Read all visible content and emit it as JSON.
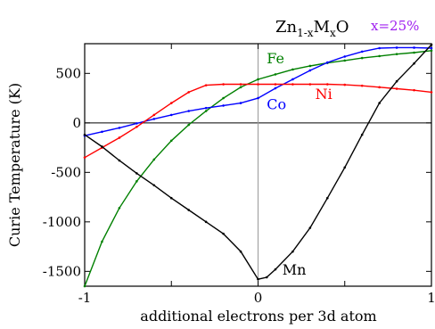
{
  "chart_data": {
    "type": "line",
    "title_parts": {
      "base": "Zn",
      "sub1": "1-x",
      "mid": "M",
      "sub2": "x",
      "end": "O"
    },
    "annotation": "x=25%",
    "xlabel": "additional electrons per 3d atom",
    "ylabel": "Curie Temperature (K)",
    "xlim": [
      -1,
      1
    ],
    "ylim": [
      -1650,
      800
    ],
    "x_ticks": [
      -1,
      -0.5,
      0,
      0.5,
      1
    ],
    "x_tick_labels": [
      "-1",
      "",
      "0",
      "",
      "1"
    ],
    "y_ticks": [
      -1500,
      -1000,
      -500,
      0,
      500
    ],
    "y_tick_labels": [
      "-1500",
      "-1000",
      "-500",
      "0",
      "500"
    ],
    "reference_lines": {
      "y": 0,
      "x": 0
    },
    "series": [
      {
        "name": "Fe",
        "color": "#008000",
        "label_at": [
          0.05,
          600
        ],
        "points": [
          [
            -1,
            -1650
          ],
          [
            -0.9,
            -1200
          ],
          [
            -0.8,
            -860
          ],
          [
            -0.7,
            -590
          ],
          [
            -0.6,
            -370
          ],
          [
            -0.5,
            -180
          ],
          [
            -0.4,
            -20
          ],
          [
            -0.3,
            120
          ],
          [
            -0.2,
            250
          ],
          [
            -0.1,
            360
          ],
          [
            0,
            440
          ],
          [
            0.1,
            490
          ],
          [
            0.2,
            540
          ],
          [
            0.3,
            575
          ],
          [
            0.4,
            605
          ],
          [
            0.5,
            630
          ],
          [
            0.6,
            655
          ],
          [
            0.7,
            675
          ],
          [
            0.8,
            695
          ],
          [
            0.9,
            710
          ],
          [
            1,
            730
          ]
        ]
      },
      {
        "name": "Co",
        "color": "#0000ff",
        "label_at": [
          0.05,
          140
        ],
        "points": [
          [
            -1,
            -130
          ],
          [
            -0.9,
            -90
          ],
          [
            -0.8,
            -50
          ],
          [
            -0.7,
            -5
          ],
          [
            -0.6,
            40
          ],
          [
            -0.5,
            80
          ],
          [
            -0.4,
            120
          ],
          [
            -0.3,
            150
          ],
          [
            -0.2,
            175
          ],
          [
            -0.1,
            200
          ],
          [
            0,
            250
          ],
          [
            0.1,
            350
          ],
          [
            0.2,
            440
          ],
          [
            0.3,
            530
          ],
          [
            0.4,
            610
          ],
          [
            0.5,
            670
          ],
          [
            0.6,
            720
          ],
          [
            0.7,
            755
          ],
          [
            0.8,
            760
          ],
          [
            0.9,
            760
          ],
          [
            1,
            755
          ]
        ]
      },
      {
        "name": "Ni",
        "color": "#ff0000",
        "label_at": [
          0.33,
          240
        ],
        "points": [
          [
            -1,
            -350
          ],
          [
            -0.9,
            -250
          ],
          [
            -0.8,
            -150
          ],
          [
            -0.7,
            -40
          ],
          [
            -0.6,
            80
          ],
          [
            -0.5,
            200
          ],
          [
            -0.4,
            310
          ],
          [
            -0.3,
            380
          ],
          [
            -0.2,
            390
          ],
          [
            -0.1,
            390
          ],
          [
            0,
            390
          ],
          [
            0.1,
            390
          ],
          [
            0.2,
            390
          ],
          [
            0.3,
            390
          ],
          [
            0.4,
            390
          ],
          [
            0.5,
            385
          ],
          [
            0.6,
            375
          ],
          [
            0.7,
            360
          ],
          [
            0.8,
            345
          ],
          [
            0.9,
            330
          ],
          [
            1,
            310
          ]
        ]
      },
      {
        "name": "Mn",
        "color": "#000000",
        "label_at": [
          0.14,
          -1535
        ],
        "points": [
          [
            -1,
            -120
          ],
          [
            -0.9,
            -240
          ],
          [
            -0.8,
            -380
          ],
          [
            -0.7,
            -510
          ],
          [
            -0.6,
            -630
          ],
          [
            -0.5,
            -760
          ],
          [
            -0.4,
            -880
          ],
          [
            -0.3,
            -1000
          ],
          [
            -0.2,
            -1120
          ],
          [
            -0.1,
            -1300
          ],
          [
            0,
            -1580
          ],
          [
            0.05,
            -1560
          ],
          [
            0.1,
            -1480
          ],
          [
            0.2,
            -1300
          ],
          [
            0.3,
            -1060
          ],
          [
            0.4,
            -760
          ],
          [
            0.5,
            -450
          ],
          [
            0.6,
            -120
          ],
          [
            0.7,
            200
          ],
          [
            0.8,
            420
          ],
          [
            0.9,
            600
          ],
          [
            1,
            790
          ]
        ]
      }
    ]
  }
}
